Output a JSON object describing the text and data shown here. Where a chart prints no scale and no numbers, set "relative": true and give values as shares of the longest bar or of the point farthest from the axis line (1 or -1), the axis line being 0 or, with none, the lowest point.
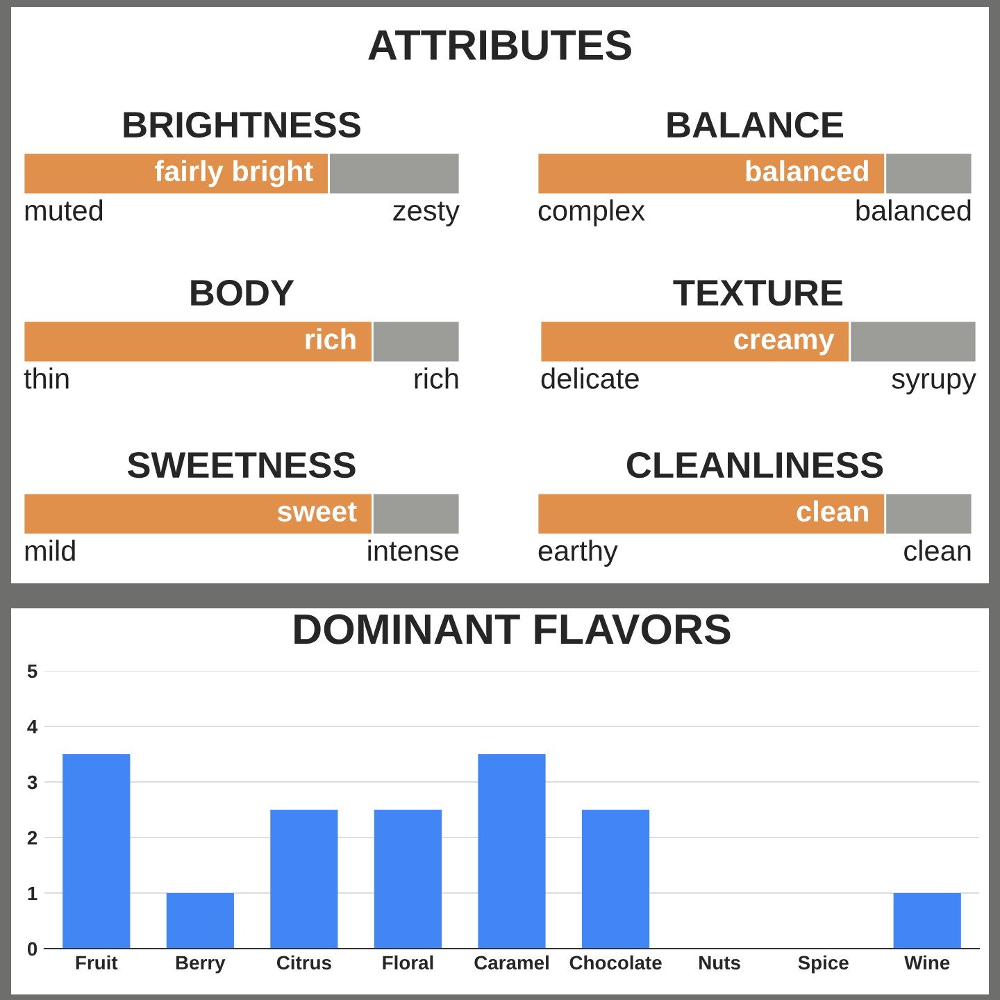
{
  "chart_data": [
    {
      "type": "other",
      "title": "ATTRIBUTES"
    },
    {
      "type": "bar",
      "orientation": "horizontal",
      "stacked": true,
      "relative": true,
      "title": "BRIGHTNESS",
      "categories": [
        null
      ],
      "annotations": [
        "muted",
        "zesty",
        {
          "text": "fairly bright",
          "x": 0.7
        }
      ],
      "series": [
        {
          "color": "#e0904a",
          "values": [
            0.7
          ]
        },
        {
          "color": "#9c9d99",
          "values": [
            0.3
          ]
        }
      ]
    },
    {
      "type": "bar",
      "orientation": "horizontal",
      "stacked": true,
      "relative": true,
      "title": "BALANCE",
      "categories": [
        null
      ],
      "annotations": [
        "complex",
        "balanced",
        {
          "text": "balanced",
          "x": 0.8
        }
      ],
      "series": [
        {
          "color": "#e0904a",
          "values": [
            0.8
          ]
        },
        {
          "color": "#9c9d99",
          "values": [
            0.2
          ]
        }
      ]
    },
    {
      "type": "bar",
      "orientation": "horizontal",
      "stacked": true,
      "relative": true,
      "title": "BODY",
      "categories": [
        null
      ],
      "annotations": [
        "thin",
        "rich",
        {
          "text": "rich",
          "x": 0.8
        }
      ],
      "series": [
        {
          "color": "#e0904a",
          "values": [
            0.8
          ]
        },
        {
          "color": "#9c9d99",
          "values": [
            0.2
          ]
        }
      ]
    },
    {
      "type": "bar",
      "orientation": "horizontal",
      "stacked": true,
      "relative": true,
      "title": "TEXTURE",
      "categories": [
        null
      ],
      "annotations": [
        "delicate",
        "syrupy",
        {
          "text": "creamy",
          "x": 0.71
        }
      ],
      "series": [
        {
          "color": "#e0904a",
          "values": [
            0.71
          ]
        },
        {
          "color": "#9c9d99",
          "values": [
            0.29
          ]
        }
      ]
    },
    {
      "type": "bar",
      "orientation": "horizontal",
      "stacked": true,
      "relative": true,
      "title": "SWEETNESS",
      "categories": [
        null
      ],
      "annotations": [
        "mild",
        "intense",
        {
          "text": "sweet",
          "x": 0.8
        }
      ],
      "series": [
        {
          "color": "#e0904a",
          "values": [
            0.8
          ]
        },
        {
          "color": "#9c9d99",
          "values": [
            0.2
          ]
        }
      ]
    },
    {
      "type": "bar",
      "orientation": "horizontal",
      "stacked": true,
      "relative": true,
      "title": "CLEANLINESS",
      "categories": [
        null
      ],
      "annotations": [
        "earthy",
        "clean",
        {
          "text": "clean",
          "x": 0.8
        }
      ],
      "series": [
        {
          "color": "#e0904a",
          "values": [
            0.8
          ]
        },
        {
          "color": "#9c9d99",
          "values": [
            0.2
          ]
        }
      ]
    },
    {
      "type": "bar",
      "title": "DOMINANT FLAVORS",
      "categories": [
        "Fruit",
        "Berry",
        "Citrus",
        "Floral",
        "Caramel",
        "Chocolate",
        "Nuts",
        "Spice",
        "Wine"
      ],
      "values": [
        3.5,
        1,
        2.5,
        2.5,
        3.5,
        2.5,
        0,
        0,
        1
      ],
      "color": "#4285f4",
      "ylim": [
        0,
        5
      ],
      "yticks": [
        0,
        1,
        2,
        3,
        4,
        5
      ],
      "grid": "y"
    }
  ]
}
